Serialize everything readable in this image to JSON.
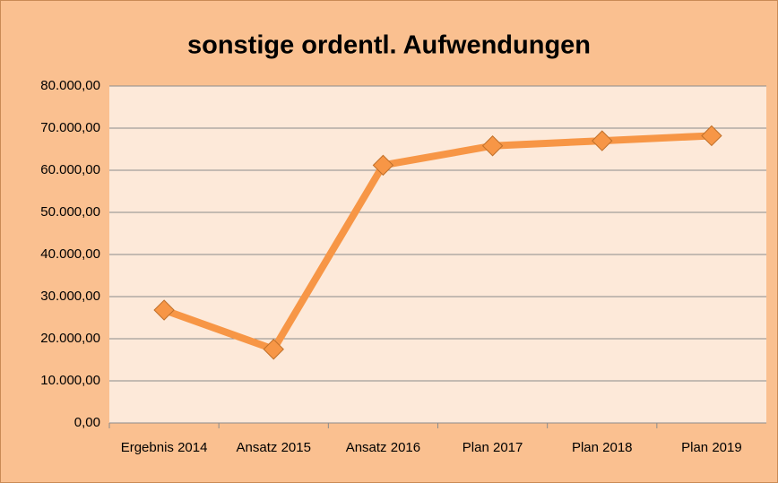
{
  "chart_data": {
    "type": "line",
    "title": "sonstige ordentl. Aufwendungen",
    "categories": [
      "Ergebnis 2014",
      "Ansatz 2015",
      "Ansatz 2016",
      "Plan 2017",
      "Plan 2018",
      "Plan 2019"
    ],
    "series": [
      {
        "name": "sonstige ordentl. Aufwendungen",
        "color": "#f79646",
        "values": [
          26800,
          17500,
          61200,
          65800,
          67000,
          68200
        ]
      }
    ],
    "ylim": [
      0,
      80000
    ],
    "yticks": [
      {
        "value": 0,
        "label": "0,00"
      },
      {
        "value": 10000,
        "label": "10.000,00"
      },
      {
        "value": 20000,
        "label": "20.000,00"
      },
      {
        "value": 30000,
        "label": "30.000,00"
      },
      {
        "value": 40000,
        "label": "40.000,00"
      },
      {
        "value": 50000,
        "label": "50.000,00"
      },
      {
        "value": 60000,
        "label": "60.000,00"
      },
      {
        "value": 70000,
        "label": "70.000,00"
      },
      {
        "value": 80000,
        "label": "80.000,00"
      }
    ],
    "grid": true
  }
}
